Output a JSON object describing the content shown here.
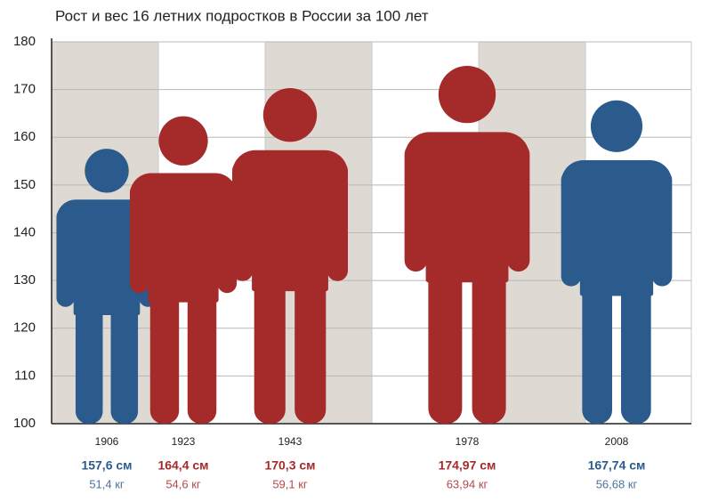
{
  "chart_data": {
    "type": "pictogram",
    "title": "Рост и вес 16 летних подростков в России за 100 лет",
    "categories": [
      "1906",
      "1923",
      "1943",
      "1978",
      "2008"
    ],
    "values": [
      157.6,
      164.4,
      170.3,
      174.97,
      167.74
    ],
    "value_labels": [
      "157,6 см",
      "164,4 см",
      "170,3 см",
      "174,97 см",
      "167,74 см"
    ],
    "weights": {
      "values": [
        51.4,
        54.6,
        59.1,
        63.94,
        56.68
      ],
      "value_labels": [
        "51,4 кг",
        "54,6 кг",
        "59,1 кг",
        "63,94 кг",
        "56,68 кг"
      ]
    },
    "colors": [
      "#2b5b8c",
      "#a52a2a",
      "#a52a2a",
      "#a52a2a",
      "#2b5b8c"
    ],
    "ylim": [
      100,
      180
    ],
    "yticks": [
      100,
      110,
      120,
      130,
      140,
      150,
      160,
      170,
      180
    ],
    "grid": true
  }
}
